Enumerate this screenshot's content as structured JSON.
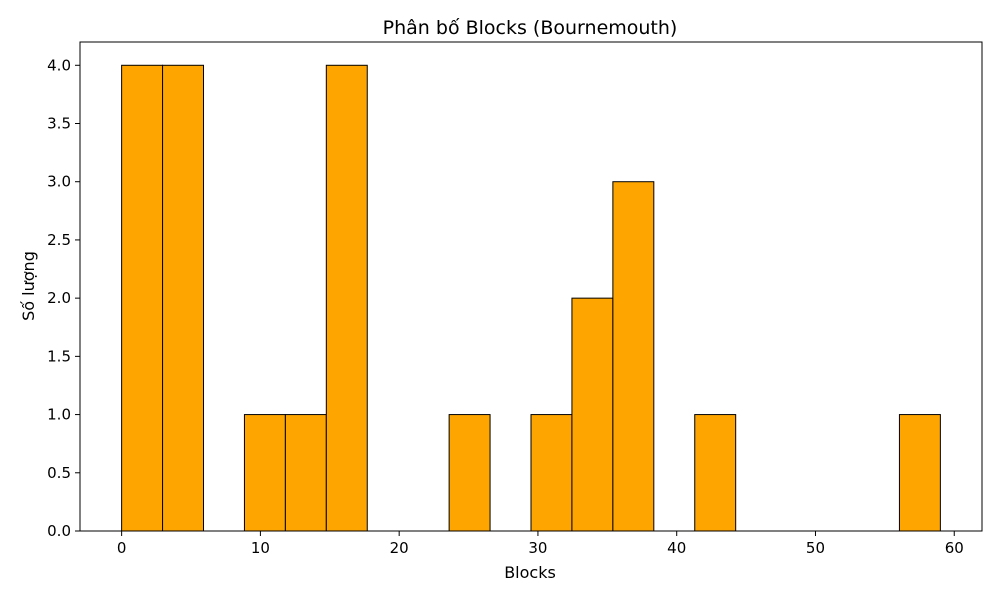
{
  "chart_data": {
    "type": "bar",
    "title": "Phân bố Blocks (Bournemouth)",
    "xlabel": "Blocks",
    "ylabel": "Số lượng",
    "bar_color": "#FFA500",
    "edge_color": "#000000",
    "xlim": [
      -3,
      62
    ],
    "ylim": [
      0,
      4.2
    ],
    "x_ticks": [
      0,
      10,
      20,
      30,
      40,
      50,
      60
    ],
    "x_tick_labels": [
      "0",
      "10",
      "20",
      "30",
      "40",
      "50",
      "60"
    ],
    "y_ticks": [
      0,
      0.5,
      1.0,
      1.5,
      2.0,
      2.5,
      3.0,
      3.5,
      4.0
    ],
    "y_tick_labels": [
      "0.0",
      "0.5",
      "1.0",
      "1.5",
      "2.0",
      "2.5",
      "3.0",
      "3.5",
      "4.0"
    ],
    "bin_edges": [
      0,
      2.95,
      5.9,
      8.85,
      11.8,
      14.75,
      17.7,
      20.65,
      23.6,
      26.55,
      29.5,
      32.45,
      35.4,
      38.35,
      41.3,
      44.25,
      47.2,
      50.15,
      53.1,
      56.05,
      59
    ],
    "counts": [
      4,
      4,
      0,
      1,
      1,
      4,
      0,
      0,
      1,
      0,
      1,
      2,
      3,
      0,
      1,
      0,
      0,
      0,
      0,
      1
    ],
    "grid": false,
    "legend": false
  }
}
